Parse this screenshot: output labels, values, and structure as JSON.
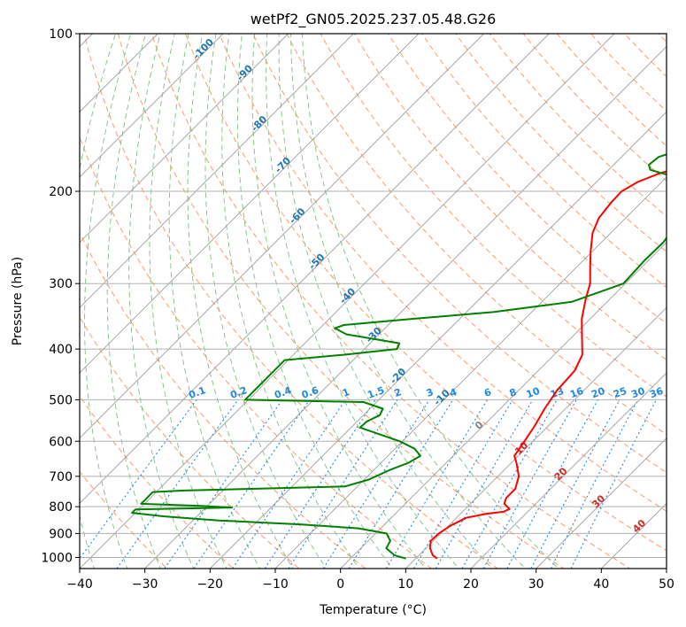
{
  "chart_data": {
    "type": "line",
    "title": "wetPf2_GN05.2025.237.05.48.G26",
    "xlabel": "Temperature (°C)",
    "ylabel": "Pressure (hPa)",
    "xlim": [
      -40,
      50
    ],
    "ylim": [
      1050,
      100
    ],
    "y_scale": "log",
    "x_ticks": [
      -40,
      -30,
      -20,
      -10,
      0,
      10,
      20,
      30,
      40,
      50
    ],
    "x_tick_labels": [
      "−40",
      "−30",
      "−20",
      "−10",
      "0",
      "10",
      "20",
      "30",
      "40",
      "50"
    ],
    "y_ticks": [
      1000,
      900,
      800,
      700,
      600,
      500,
      400,
      300,
      200,
      100
    ],
    "y_tick_labels": [
      "1000",
      "900",
      "800",
      "700",
      "600",
      "500",
      "400",
      "300",
      "200",
      "100"
    ],
    "grid": true,
    "skew": 45,
    "background_lines": {
      "isotherm_labels": [
        "-100",
        "-90",
        "-80",
        "-70",
        "-60",
        "-50",
        "-40",
        "-30",
        "-20",
        "-10",
        "0",
        "10",
        "20",
        "30",
        "40"
      ],
      "mixing_ratio_labels": [
        "0.1",
        "0.2",
        "0.4",
        "0.6",
        "1",
        "1.5",
        "2",
        "3",
        "4",
        "6",
        "8",
        "10",
        "13",
        "16",
        "20",
        "25",
        "30",
        "36"
      ]
    },
    "series": [
      {
        "role": "temperature",
        "color": "#ff0000",
        "points": [
          [
            1005,
            13.3
          ],
          [
            990,
            12.1
          ],
          [
            960,
            10.6
          ],
          [
            930,
            9.6
          ],
          [
            900,
            9.7
          ],
          [
            870,
            10.3
          ],
          [
            840,
            11.5
          ],
          [
            825,
            14.0
          ],
          [
            818,
            16.3
          ],
          [
            808,
            16.8
          ],
          [
            790,
            15.2
          ],
          [
            770,
            14.6
          ],
          [
            740,
            14.6
          ],
          [
            700,
            13.2
          ],
          [
            660,
            10.8
          ],
          [
            640,
            9.4
          ],
          [
            600,
            8.7
          ],
          [
            560,
            7.9
          ],
          [
            520,
            6.8
          ],
          [
            480,
            5.9
          ],
          [
            440,
            5.6
          ],
          [
            410,
            4.3
          ],
          [
            380,
            1.6
          ],
          [
            350,
            -1.3
          ],
          [
            320,
            -3.8
          ],
          [
            300,
            -5.4
          ],
          [
            280,
            -7.8
          ],
          [
            260,
            -10.3
          ],
          [
            240,
            -12.8
          ],
          [
            225,
            -14.1
          ],
          [
            210,
            -14.6
          ],
          [
            200,
            -14.7
          ],
          [
            192,
            -13.7
          ],
          [
            185,
            -11.7
          ],
          [
            178,
            -8.4
          ],
          [
            170,
            -5.9
          ],
          [
            160,
            -3.9
          ],
          [
            150,
            -2.5
          ],
          [
            140,
            -1.6
          ],
          [
            130,
            -1.2
          ],
          [
            122,
            -1.1
          ],
          [
            117,
            -1.1
          ],
          [
            112,
            -0.9
          ],
          [
            107,
            0.3
          ],
          [
            100,
            2.4
          ]
        ]
      },
      {
        "role": "dewpoint",
        "color": "#008000",
        "points": [
          [
            1005,
            8.5
          ],
          [
            990,
            6.2
          ],
          [
            960,
            3.9
          ],
          [
            930,
            3.4
          ],
          [
            900,
            1.7
          ],
          [
            880,
            -3.4
          ],
          [
            865,
            -12.7
          ],
          [
            850,
            -26.0
          ],
          [
            835,
            -35.0
          ],
          [
            822,
            -40.5
          ],
          [
            810,
            -40.5
          ],
          [
            803,
            -26.0
          ],
          [
            797,
            -31.0
          ],
          [
            790,
            -40.5
          ],
          [
            777,
            -40.5
          ],
          [
            762,
            -40.5
          ],
          [
            750,
            -40.5
          ],
          [
            745,
            -36.0
          ],
          [
            732,
            -11.9
          ],
          [
            710,
            -9.3
          ],
          [
            680,
            -7.5
          ],
          [
            660,
            -5.8
          ],
          [
            640,
            -5.0
          ],
          [
            620,
            -7.0
          ],
          [
            600,
            -10.4
          ],
          [
            585,
            -13.9
          ],
          [
            565,
            -18.6
          ],
          [
            550,
            -18.5
          ],
          [
            535,
            -17.5
          ],
          [
            520,
            -18.0
          ],
          [
            505,
            -22.0
          ],
          [
            500,
            -40.5
          ],
          [
            480,
            -40.5
          ],
          [
            470,
            -40.5
          ],
          [
            455,
            -40.5
          ],
          [
            420,
            -40.5
          ],
          [
            410,
            -32.0
          ],
          [
            400,
            -25.0
          ],
          [
            390,
            -25.5
          ],
          [
            375,
            -35.0
          ],
          [
            365,
            -37.7
          ],
          [
            360,
            -36.8
          ],
          [
            350,
            -26.8
          ],
          [
            340,
            -15.9
          ],
          [
            325,
            -5.4
          ],
          [
            300,
            -0.3
          ],
          [
            270,
            -0.6
          ],
          [
            250,
            -0.5
          ],
          [
            230,
            -1.3
          ],
          [
            210,
            -2.3
          ],
          [
            200,
            -3.2
          ],
          [
            195,
            -4.2
          ],
          [
            190,
            -6.5
          ],
          [
            186,
            -10.2
          ],
          [
            182,
            -13.6
          ],
          [
            178,
            -14.6
          ],
          [
            172,
            -14.3
          ],
          [
            165,
            -11.4
          ],
          [
            155,
            -6.4
          ],
          [
            140,
            0.0
          ],
          [
            125,
            4.0
          ],
          [
            112,
            8.0
          ],
          [
            100,
            10.9
          ]
        ]
      }
    ]
  }
}
